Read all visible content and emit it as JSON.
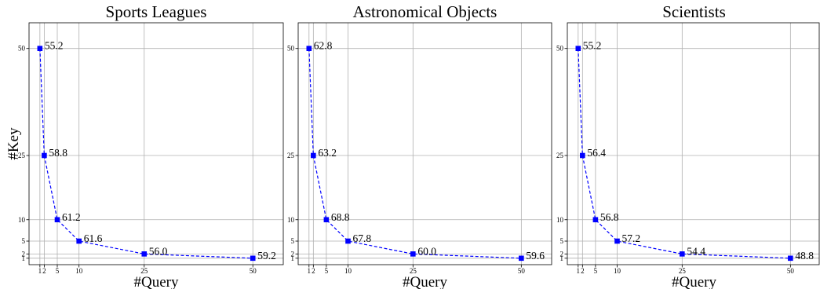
{
  "figure": {
    "ylabel": "#Key",
    "xlabel": "#Query"
  },
  "chart_data": [
    {
      "type": "line",
      "title": "Sports Leagues",
      "xlabel": "#Query",
      "ylabel": "#Key",
      "xticks": [
        1,
        2,
        5,
        10,
        25,
        50
      ],
      "yticks": [
        1,
        2,
        5,
        10,
        25,
        50
      ],
      "xlim": [
        -1.5,
        57
      ],
      "ylim": [
        -0.5,
        56
      ],
      "grid": true,
      "line_style": "dashed",
      "marker": "square",
      "color": "#0000ff",
      "points": [
        {
          "x": 1,
          "y": 50,
          "label": "55.2"
        },
        {
          "x": 2,
          "y": 25,
          "label": "58.8"
        },
        {
          "x": 5,
          "y": 10,
          "label": "61.2"
        },
        {
          "x": 10,
          "y": 5,
          "label": "61.6"
        },
        {
          "x": 25,
          "y": 2,
          "label": "56.0"
        },
        {
          "x": 50,
          "y": 1,
          "label": "59.2"
        }
      ]
    },
    {
      "type": "line",
      "title": "Astronomical Objects",
      "xlabel": "#Query",
      "ylabel": "",
      "xticks": [
        1,
        2,
        5,
        10,
        25,
        50
      ],
      "yticks": [
        1,
        2,
        5,
        10,
        25,
        50
      ],
      "xlim": [
        -1.5,
        57
      ],
      "ylim": [
        -0.5,
        56
      ],
      "grid": true,
      "line_style": "dashed",
      "marker": "square",
      "color": "#0000ff",
      "points": [
        {
          "x": 1,
          "y": 50,
          "label": "62.8"
        },
        {
          "x": 2,
          "y": 25,
          "label": "63.2"
        },
        {
          "x": 5,
          "y": 10,
          "label": "68.8"
        },
        {
          "x": 10,
          "y": 5,
          "label": "67.8"
        },
        {
          "x": 25,
          "y": 2,
          "label": "60.0"
        },
        {
          "x": 50,
          "y": 1,
          "label": "59.6"
        }
      ]
    },
    {
      "type": "line",
      "title": "Scientists",
      "xlabel": "#Query",
      "ylabel": "",
      "xticks": [
        1,
        2,
        5,
        10,
        25,
        50
      ],
      "yticks": [
        1,
        2,
        5,
        10,
        25,
        50
      ],
      "xlim": [
        -1.5,
        57
      ],
      "ylim": [
        -0.5,
        56
      ],
      "grid": true,
      "line_style": "dashed",
      "marker": "square",
      "color": "#0000ff",
      "points": [
        {
          "x": 1,
          "y": 50,
          "label": "55.2"
        },
        {
          "x": 2,
          "y": 25,
          "label": "56.4"
        },
        {
          "x": 5,
          "y": 10,
          "label": "56.8"
        },
        {
          "x": 10,
          "y": 5,
          "label": "57.2"
        },
        {
          "x": 25,
          "y": 2,
          "label": "54.4"
        },
        {
          "x": 50,
          "y": 1,
          "label": "48.8"
        }
      ]
    }
  ]
}
